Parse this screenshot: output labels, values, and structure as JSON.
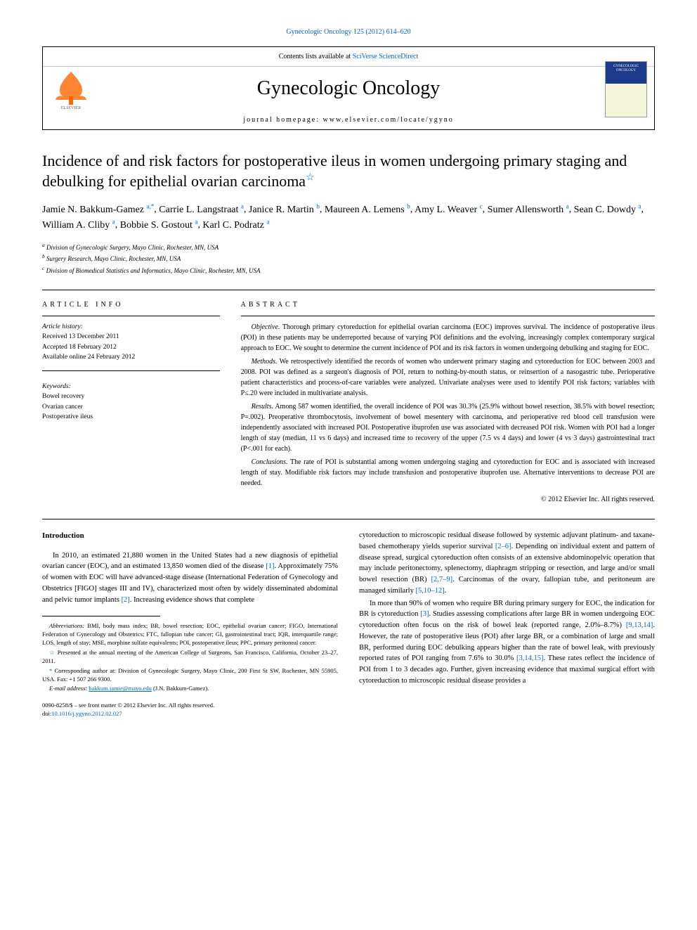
{
  "header": {
    "citation": "Gynecologic Oncology 125 (2012) 614–620",
    "contents_line_prefix": "Contents lists available at ",
    "contents_link": "SciVerse ScienceDirect",
    "journal_name": "Gynecologic Oncology",
    "homepage_prefix": "journal homepage: ",
    "homepage_url": "www.elsevier.com/locate/ygyno",
    "cover_label_top": "GYNECOLOGIC",
    "cover_label_bottom": "ONCOLOGY"
  },
  "article": {
    "title": "Incidence of and risk factors for postoperative ileus in women undergoing primary staging and debulking for epithelial ovarian carcinoma",
    "star": "☆"
  },
  "authors": [
    {
      "name": "Jamie N. Bakkum-Gamez",
      "sup": "a,",
      "corr": "*"
    },
    {
      "name": "Carrie L. Langstraat",
      "sup": "a"
    },
    {
      "name": "Janice R. Martin",
      "sup": "b"
    },
    {
      "name": "Maureen A. Lemens",
      "sup": "b"
    },
    {
      "name": "Amy L. Weaver",
      "sup": "c"
    },
    {
      "name": "Sumer Allensworth",
      "sup": "a"
    },
    {
      "name": "Sean C. Dowdy",
      "sup": "a"
    },
    {
      "name": "William A. Cliby",
      "sup": "a"
    },
    {
      "name": "Bobbie S. Gostout",
      "sup": "a"
    },
    {
      "name": "Karl C. Podratz",
      "sup": "a"
    }
  ],
  "affiliations": [
    {
      "label": "a",
      "text": "Division of Gynecologic Surgery, Mayo Clinic, Rochester, MN, USA"
    },
    {
      "label": "b",
      "text": "Surgery Research, Mayo Clinic, Rochester, MN, USA"
    },
    {
      "label": "c",
      "text": "Division of Biomedical Statistics and Informatics, Mayo Clinic, Rochester, MN, USA"
    }
  ],
  "article_info": {
    "label": "ARTICLE INFO",
    "history_heading": "Article history:",
    "received": "Received 13 December 2011",
    "accepted": "Accepted 18 February 2012",
    "online": "Available online 24 February 2012",
    "keywords_heading": "Keywords:",
    "keywords": [
      "Bowel recovery",
      "Ovarian cancer",
      "Postoperative ileus"
    ]
  },
  "abstract": {
    "label": "ABSTRACT",
    "objective_heading": "Objective.",
    "objective": "Thorough primary cytoreduction for epithelial ovarian carcinoma (EOC) improves survival. The incidence of postoperative ileus (POI) in these patients may be underreported because of varying POI definitions and the evolving, increasingly complex contemporary surgical approach to EOC. We sought to determine the current incidence of POI and its risk factors in women undergoing debulking and staging for EOC.",
    "methods_heading": "Methods.",
    "methods": "We retrospectively identified the records of women who underwent primary staging and cytoreduction for EOC between 2003 and 2008. POI was defined as a surgeon's diagnosis of POI, return to nothing-by-mouth status, or reinsertion of a nasogastric tube. Perioperative patient characteristics and process-of-care variables were analyzed. Univariate analyses were used to identify POI risk factors; variables with P≤.20 were included in multivariate analysis.",
    "results_heading": "Results.",
    "results": "Among 587 women identified, the overall incidence of POI was 30.3% (25.9% without bowel resection, 38.5% with bowel resection; P=.002). Preoperative thrombocytosis, involvement of bowel mesentery with carcinoma, and perioperative red blood cell transfusion were independently associated with increased POI. Postoperative ibuprofen use was associated with decreased POI risk. Women with POI had a longer length of stay (median, 11 vs 6 days) and increased time to recovery of the upper (7.5 vs 4 days) and lower (4 vs 3 days) gastrointestinal tract (P<.001 for each).",
    "conclusions_heading": "Conclusions.",
    "conclusions": "The rate of POI is substantial among women undergoing staging and cytoreduction for EOC and is associated with increased length of stay. Modifiable risk factors may include transfusion and postoperative ibuprofen use. Alternative interventions to decrease POI are needed.",
    "copyright": "© 2012 Elsevier Inc. All rights reserved."
  },
  "body": {
    "intro_heading": "Introduction",
    "intro_p1_a": "In 2010, an estimated 21,880 women in the United States had a new diagnosis of epithelial ovarian cancer (EOC), and an estimated 13,850 women died of the disease ",
    "intro_p1_ref1": "[1]",
    "intro_p1_b": ". Approximately 75% of women with EOC will have advanced-stage disease (International Federation of Gynecology and Obstetrics [FIGO] stages III and IV), characterized most often by widely disseminated abdominal and pelvic tumor implants ",
    "intro_p1_ref2": "[2]",
    "intro_p1_c": ". Increasing evidence shows that complete",
    "col2_p1_a": "cytoreduction to microscopic residual disease followed by systemic adjuvant platinum- and taxane-based chemotherapy yields superior survival ",
    "col2_p1_ref1": "[2–6]",
    "col2_p1_b": ". Depending on individual extent and pattern of disease spread, surgical cytoreduction often consists of an extensive abdominopelvic operation that may include peritonectomy, splenectomy, diaphragm stripping or resection, and large and/or small bowel resection (BR) ",
    "col2_p1_ref2": "[2,7–9]",
    "col2_p1_c": ". Carcinomas of the ovary, fallopian tube, and peritoneum are managed similarly ",
    "col2_p1_ref3": "[5,10–12]",
    "col2_p1_d": ".",
    "col2_p2_a": "In more than 90% of women who require BR during primary surgery for EOC, the indication for BR is cytoreduction ",
    "col2_p2_ref1": "[3]",
    "col2_p2_b": ". Studies assessing complications after large BR in women undergoing EOC cytoreduction often focus on the risk of bowel leak (reported range, 2.0%–8.7%) ",
    "col2_p2_ref2": "[9,13,14]",
    "col2_p2_c": ". However, the rate of postoperative ileus (POI) after large BR, or a combination of large and small BR, performed during EOC debulking appears higher than the rate of bowel leak, with previously reported rates of POI ranging from 7.6% to 30.0% ",
    "col2_p2_ref3": "[3,14,15]",
    "col2_p2_d": ". These rates reflect the incidence of POI from 1 to 3 decades ago. Further, given increasing evidence that maximal surgical effort with cytoreduction to microscopic residual disease provides a"
  },
  "footnotes": {
    "abbrev_label": "Abbreviations:",
    "abbrev": "BMI, body mass index; BR, bowel resection; EOC, epithelial ovarian cancer; FIGO, International Federation of Gynecology and Obstetrics; FTC, fallopian tube cancer; GI, gastrointestinal tract; IQR, interquartile range; LOS, length of stay; MSE, morphine sulfate equivalents; POI, postoperative ileus; PPC, primary peritoneal cancer.",
    "presented_star": "☆",
    "presented": "Presented at the annual meeting of the American College of Surgeons, San Francisco, California, October 23–27, 2011.",
    "corr_star": "*",
    "corr": "Corresponding author at: Division of Gynecologic Surgery, Mayo Clinic, 200 First St SW, Rochester, MN 55905, USA. Fax: +1 507 266 9300.",
    "email_label": "E-mail address:",
    "email": "bakkum.jamie@mayo.edu",
    "email_suffix": "(J.N. Bakkum-Gamez)."
  },
  "doi": {
    "line1": "0090-8258/$ – see front matter © 2012 Elsevier Inc. All rights reserved.",
    "prefix": "doi:",
    "link": "10.1016/j.ygyno.2012.02.027"
  },
  "colors": {
    "link": "#0066cc",
    "text": "#000000",
    "elsevier_orange": "#ff6600",
    "cover_blue": "#1e3a8a",
    "cover_cream": "#f5f5dc"
  }
}
